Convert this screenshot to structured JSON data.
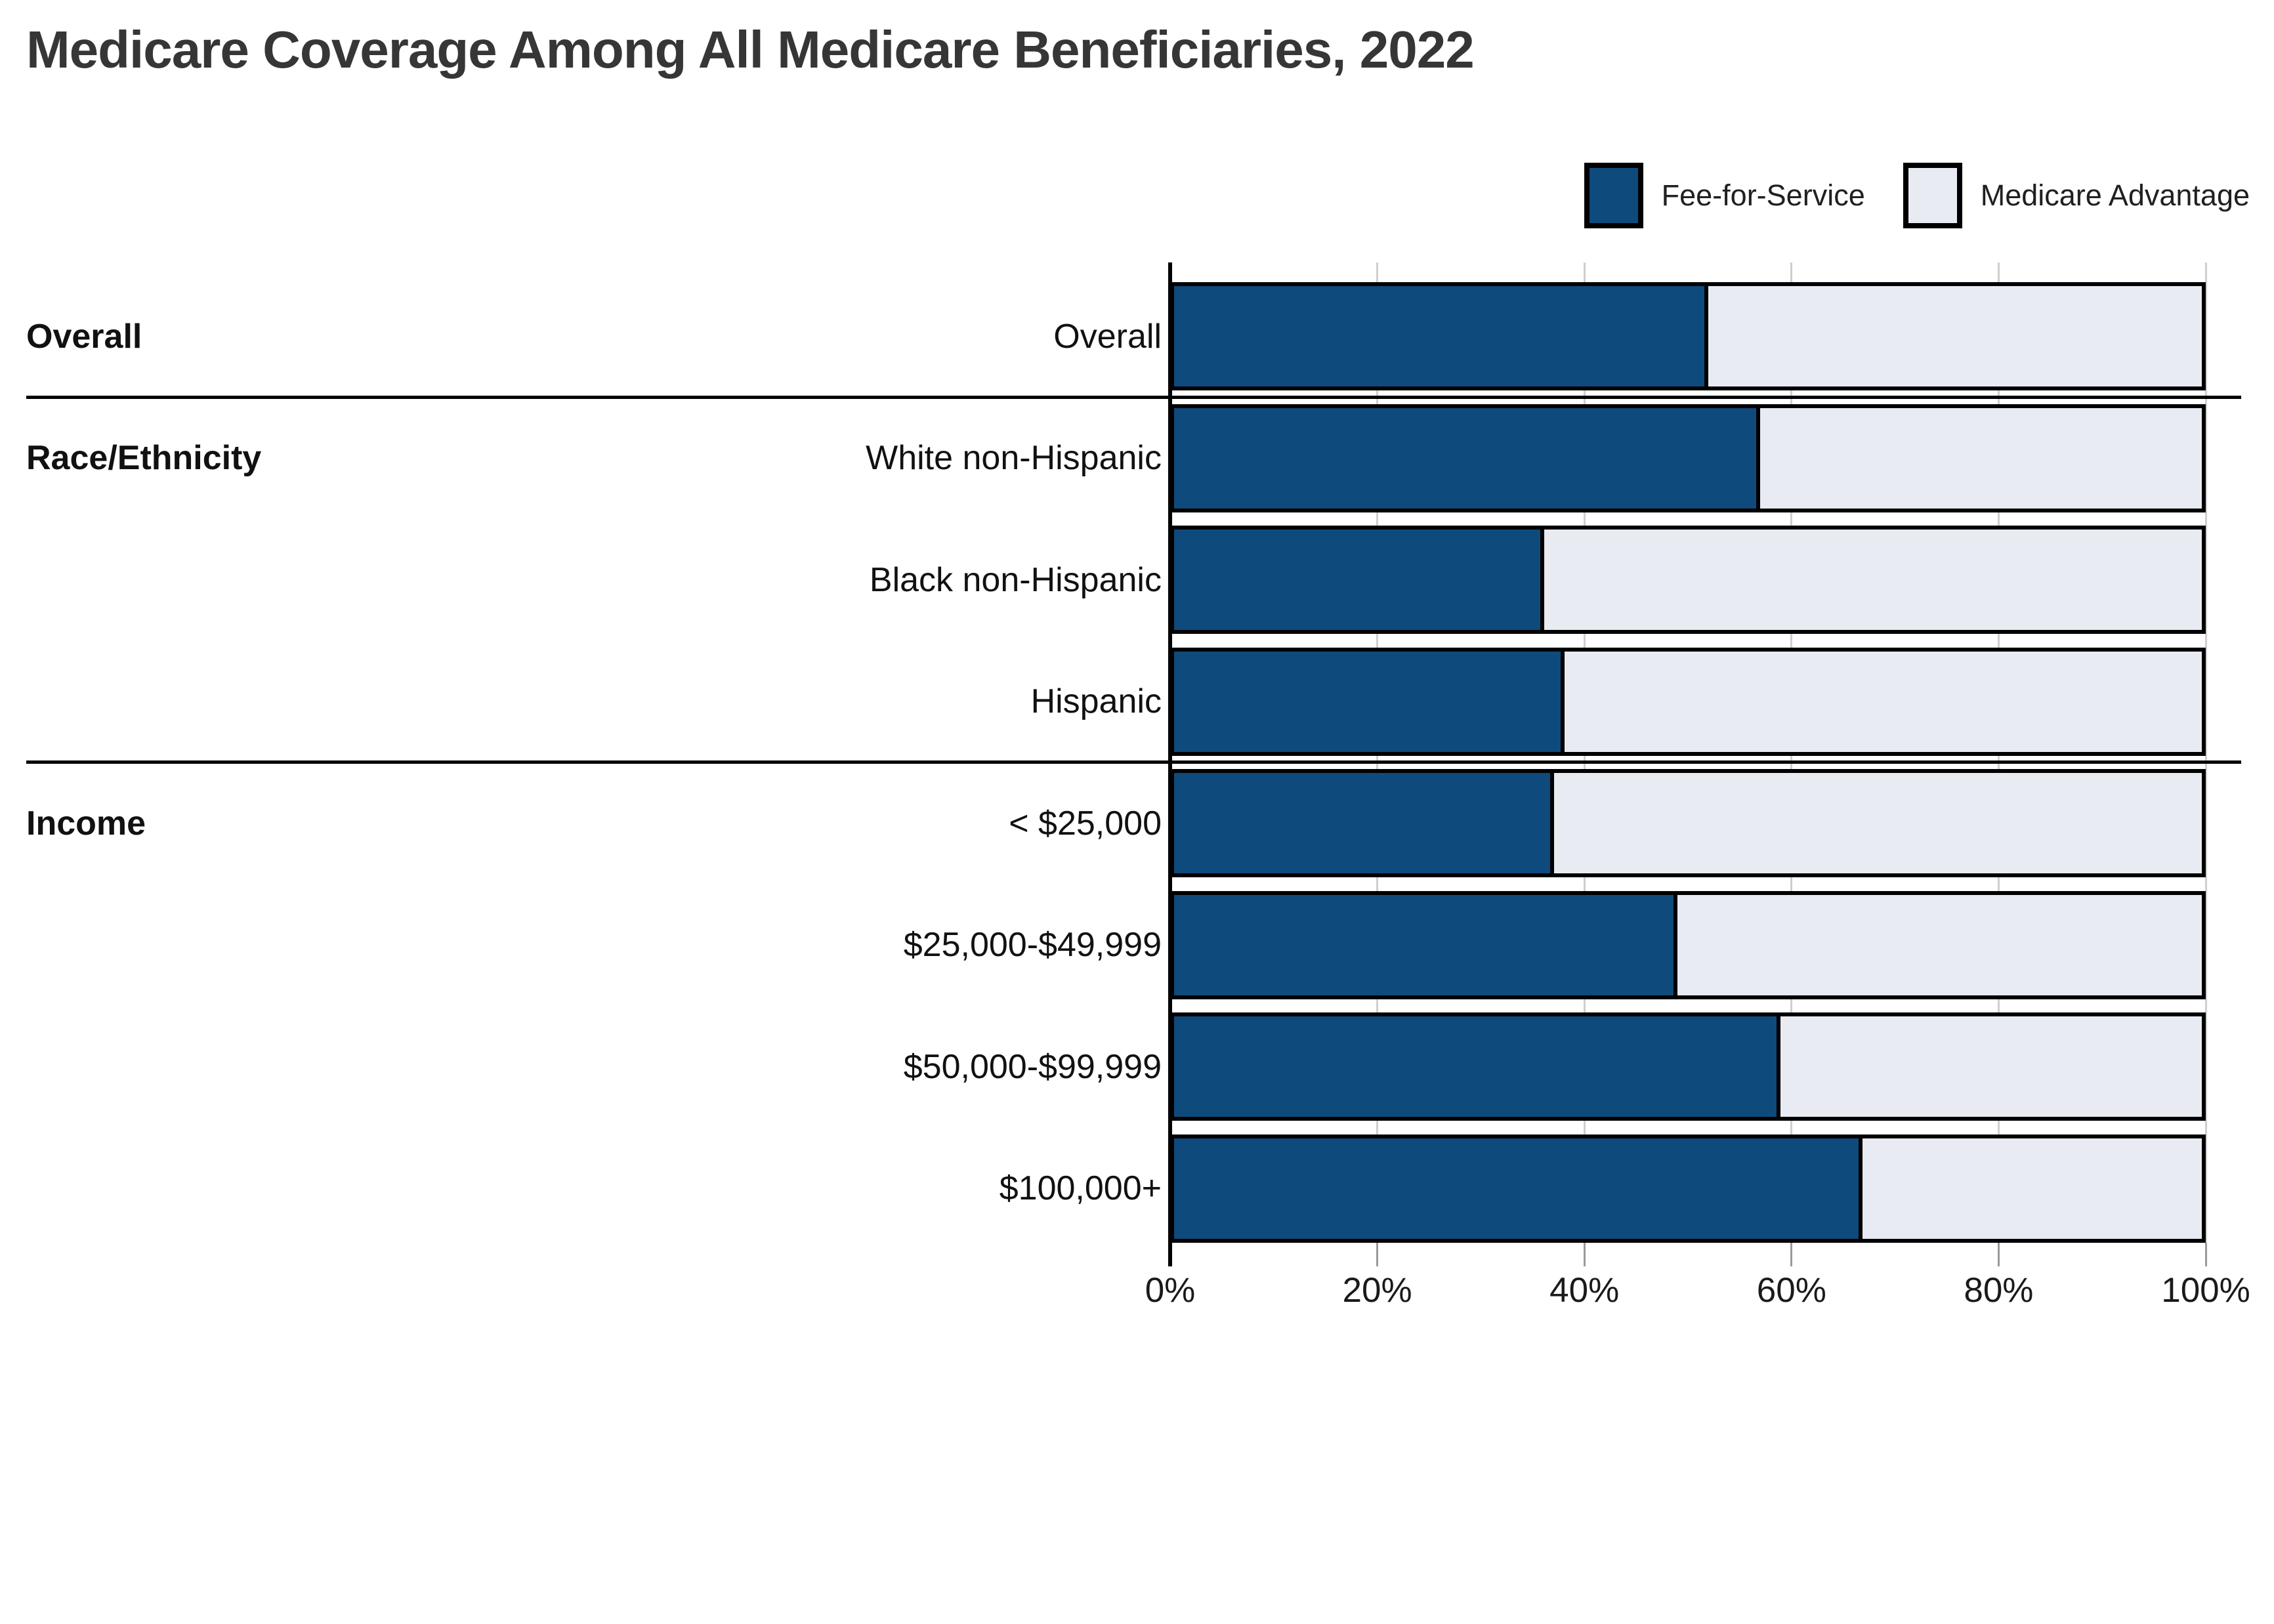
{
  "title": "Medicare Coverage Among All Medicare Beneficiaries, 2022",
  "legend": {
    "items": [
      {
        "label": "Fee-for-Service",
        "color": "#0F4A7C"
      },
      {
        "label": "Medicare Advantage",
        "color": "#E8EBF2"
      }
    ]
  },
  "chart_data": {
    "type": "bar",
    "orientation": "horizontal",
    "stacked": true,
    "unit": "percent",
    "title": "Medicare Coverage Among All Medicare Beneficiaries, 2022",
    "categories": [
      "Overall",
      "White non-Hispanic",
      "Black non-Hispanic",
      "Hispanic",
      "< $25,000",
      "$25,000-$49,999",
      "$50,000-$99,999",
      "$100,000+"
    ],
    "section_labels": [
      {
        "label": "Overall",
        "start_row": 0
      },
      {
        "label": "Race/Ethnicity",
        "start_row": 1
      },
      {
        "label": "Income",
        "start_row": 4
      }
    ],
    "series": [
      {
        "name": "Fee-for-Service",
        "color": "#0F4A7C",
        "values": [
          52,
          57,
          36,
          38,
          37,
          49,
          59,
          67
        ]
      },
      {
        "name": "Medicare Advantage",
        "color": "#E8EBF2",
        "values": [
          48,
          43,
          64,
          62,
          63,
          51,
          41,
          33
        ]
      }
    ],
    "x_axis": {
      "ticks": [
        "0%",
        "20%",
        "40%",
        "60%",
        "80%",
        "100%"
      ],
      "min": 0,
      "max": 100,
      "gridlines": true
    },
    "legend_position": "top-right"
  },
  "colors": {
    "bar_border": "#000000",
    "gridline": "#CFCFCF",
    "title_text": "#363636",
    "label_text": "#111111"
  }
}
